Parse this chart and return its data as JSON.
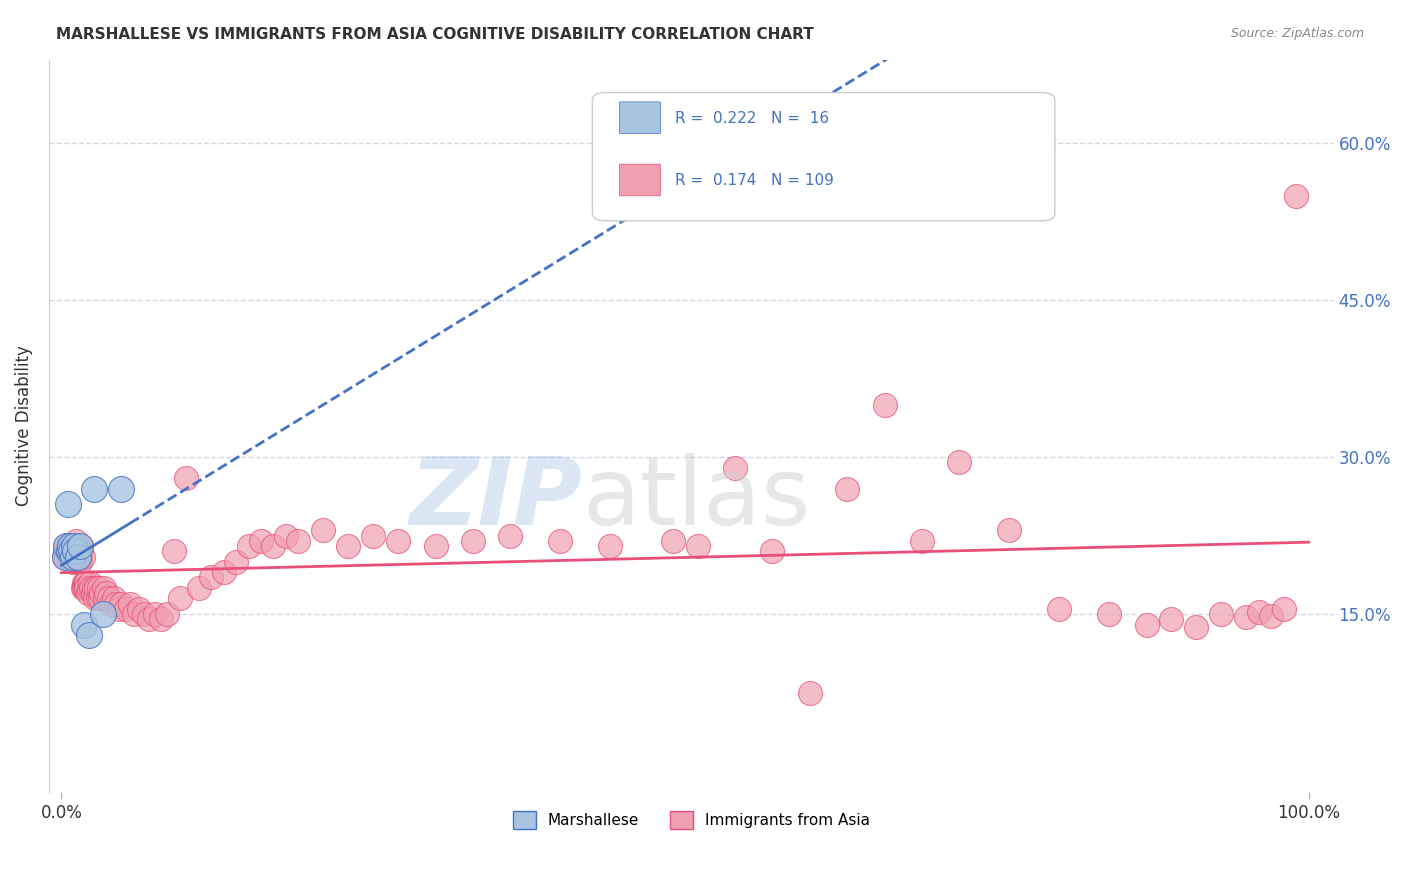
{
  "title": "MARSHALLESE VS IMMIGRANTS FROM ASIA COGNITIVE DISABILITY CORRELATION CHART",
  "source": "Source: ZipAtlas.com",
  "ylabel": "Cognitive Disability",
  "ytick_labels": [
    "15.0%",
    "30.0%",
    "45.0%",
    "60.0%"
  ],
  "yticks": [
    0.15,
    0.3,
    0.45,
    0.6
  ],
  "r_marshallese": 0.222,
  "n_marshallese": 16,
  "r_asia": 0.174,
  "n_asia": 109,
  "marshallese_color": "#a8c4e0",
  "asia_color": "#f0a0b0",
  "marshallese_line_color": "#4472C4",
  "asia_line_color": "#E8507A",
  "background_color": "#ffffff",
  "grid_color": "#d0d8e8",
  "marshallese_x": [
    0.003,
    0.004,
    0.005,
    0.006,
    0.007,
    0.008,
    0.009,
    0.01,
    0.011,
    0.013,
    0.015,
    0.018,
    0.022,
    0.026,
    0.033,
    0.048
  ],
  "marshallese_y": [
    0.205,
    0.215,
    0.255,
    0.21,
    0.215,
    0.21,
    0.205,
    0.215,
    0.21,
    0.205,
    0.215,
    0.14,
    0.13,
    0.27,
    0.15,
    0.27
  ],
  "asia_x": [
    0.002,
    0.003,
    0.003,
    0.004,
    0.004,
    0.005,
    0.005,
    0.006,
    0.006,
    0.007,
    0.007,
    0.008,
    0.008,
    0.009,
    0.009,
    0.01,
    0.01,
    0.011,
    0.011,
    0.012,
    0.012,
    0.013,
    0.013,
    0.014,
    0.014,
    0.015,
    0.015,
    0.016,
    0.016,
    0.017,
    0.017,
    0.018,
    0.018,
    0.019,
    0.019,
    0.02,
    0.02,
    0.021,
    0.022,
    0.023,
    0.024,
    0.025,
    0.026,
    0.027,
    0.028,
    0.029,
    0.03,
    0.031,
    0.032,
    0.034,
    0.035,
    0.036,
    0.038,
    0.04,
    0.042,
    0.044,
    0.046,
    0.048,
    0.052,
    0.055,
    0.058,
    0.062,
    0.066,
    0.07,
    0.075,
    0.08,
    0.085,
    0.09,
    0.095,
    0.1,
    0.11,
    0.12,
    0.13,
    0.14,
    0.15,
    0.16,
    0.17,
    0.18,
    0.19,
    0.21,
    0.23,
    0.25,
    0.27,
    0.3,
    0.33,
    0.36,
    0.4,
    0.44,
    0.49,
    0.51,
    0.54,
    0.57,
    0.6,
    0.63,
    0.66,
    0.69,
    0.72,
    0.76,
    0.8,
    0.84,
    0.87,
    0.89,
    0.91,
    0.93,
    0.95,
    0.96,
    0.97,
    0.98,
    0.99
  ],
  "asia_y": [
    0.205,
    0.21,
    0.215,
    0.21,
    0.205,
    0.21,
    0.215,
    0.205,
    0.21,
    0.215,
    0.21,
    0.205,
    0.21,
    0.215,
    0.2,
    0.21,
    0.215,
    0.205,
    0.21,
    0.22,
    0.215,
    0.21,
    0.205,
    0.215,
    0.21,
    0.2,
    0.205,
    0.215,
    0.21,
    0.205,
    0.175,
    0.18,
    0.175,
    0.18,
    0.175,
    0.18,
    0.175,
    0.17,
    0.175,
    0.18,
    0.175,
    0.17,
    0.175,
    0.165,
    0.175,
    0.165,
    0.175,
    0.165,
    0.17,
    0.175,
    0.165,
    0.17,
    0.165,
    0.16,
    0.165,
    0.16,
    0.155,
    0.16,
    0.155,
    0.16,
    0.15,
    0.155,
    0.15,
    0.145,
    0.15,
    0.145,
    0.15,
    0.21,
    0.165,
    0.28,
    0.175,
    0.185,
    0.19,
    0.2,
    0.215,
    0.22,
    0.215,
    0.225,
    0.22,
    0.23,
    0.215,
    0.225,
    0.22,
    0.215,
    0.22,
    0.225,
    0.22,
    0.215,
    0.22,
    0.215,
    0.29,
    0.21,
    0.075,
    0.27,
    0.35,
    0.22,
    0.295,
    0.23,
    0.155,
    0.15,
    0.14,
    0.145,
    0.138,
    0.15,
    0.147,
    0.152,
    0.148,
    0.155,
    0.55
  ]
}
